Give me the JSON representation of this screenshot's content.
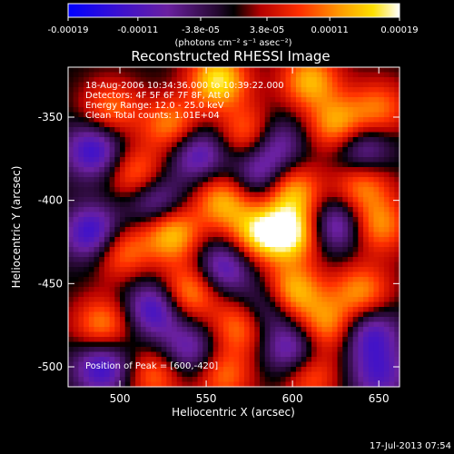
{
  "colorbar": {
    "tick_labels": [
      "-0.00019",
      "-0.00011",
      "-3.8e-05",
      "3.8e-05",
      "0.00011",
      "0.00019"
    ],
    "tick_values": [
      -0.00019,
      -0.00011,
      -3.8e-05,
      3.8e-05,
      0.00011,
      0.00019
    ],
    "range": [
      -0.00019,
      0.00019
    ],
    "unit_label": "(photons cm⁻² s⁻¹ asec⁻²)"
  },
  "footer": {
    "timestamp": "17-Jul-2013 07:54"
  },
  "chart_data": {
    "type": "heatmap",
    "title": "Reconstructed RHESSI Image",
    "xlabel": "Heliocentric X (arcsec)",
    "ylabel": "Heliocentric Y (arcsec)",
    "xlim": [
      470,
      662
    ],
    "ylim": [
      -512,
      -320
    ],
    "x_ticks": [
      500,
      550,
      600,
      650
    ],
    "y_ticks": [
      -350,
      -400,
      -450,
      -500
    ],
    "colormap": "rhessi (blue-purple-black-red-orange-yellow-white)",
    "annotations": [
      "18-Aug-2006 10:34:36.000 to 10:39:22.000",
      "Detectors: 4F 5F 6F 7F 8F, Att 0",
      "Energy Range: 12.0 - 25.0 keV",
      "Clean    Total counts: 1.01E+04"
    ],
    "peak_label": "Position of Peak = [600,-420]",
    "peak": [
      600,
      -420
    ],
    "blobs": [
      {
        "x": 557,
        "y": -328,
        "v": 1.0
      },
      {
        "x": 610,
        "y": -328,
        "v": 0.8
      },
      {
        "x": 495,
        "y": -345,
        "v": 0.6
      },
      {
        "x": 530,
        "y": -355,
        "v": 0.7
      },
      {
        "x": 575,
        "y": -360,
        "v": 0.7
      },
      {
        "x": 626,
        "y": -355,
        "v": 0.8
      },
      {
        "x": 650,
        "y": -345,
        "v": 0.6
      },
      {
        "x": 510,
        "y": -385,
        "v": 0.7
      },
      {
        "x": 560,
        "y": -400,
        "v": 0.8
      },
      {
        "x": 600,
        "y": -395,
        "v": 0.8
      },
      {
        "x": 640,
        "y": -390,
        "v": 0.7
      },
      {
        "x": 530,
        "y": -420,
        "v": 0.9
      },
      {
        "x": 580,
        "y": -420,
        "v": 0.9
      },
      {
        "x": 600,
        "y": -420,
        "v": 1.0
      },
      {
        "x": 650,
        "y": -415,
        "v": 0.7
      },
      {
        "x": 500,
        "y": -430,
        "v": 0.7
      },
      {
        "x": 540,
        "y": -455,
        "v": 0.8
      },
      {
        "x": 600,
        "y": -455,
        "v": 0.9
      },
      {
        "x": 640,
        "y": -455,
        "v": 0.7
      },
      {
        "x": 490,
        "y": -475,
        "v": 0.7
      },
      {
        "x": 570,
        "y": -475,
        "v": 0.7
      },
      {
        "x": 620,
        "y": -475,
        "v": 0.7
      },
      {
        "x": 520,
        "y": -505,
        "v": 0.6
      },
      {
        "x": 560,
        "y": -505,
        "v": 0.6
      },
      {
        "x": 610,
        "y": -505,
        "v": 0.6
      },
      {
        "x": 485,
        "y": -370,
        "v": -0.8
      },
      {
        "x": 545,
        "y": -372,
        "v": -0.7
      },
      {
        "x": 590,
        "y": -365,
        "v": -0.6
      },
      {
        "x": 640,
        "y": -370,
        "v": -0.7
      },
      {
        "x": 520,
        "y": -400,
        "v": -0.7
      },
      {
        "x": 580,
        "y": -385,
        "v": -0.6
      },
      {
        "x": 625,
        "y": -415,
        "v": -0.7
      },
      {
        "x": 485,
        "y": -420,
        "v": -0.9
      },
      {
        "x": 560,
        "y": -440,
        "v": -0.7
      },
      {
        "x": 520,
        "y": -465,
        "v": -0.8
      },
      {
        "x": 585,
        "y": -465,
        "v": -0.6
      },
      {
        "x": 645,
        "y": -480,
        "v": -0.7
      },
      {
        "x": 490,
        "y": -500,
        "v": -0.8
      },
      {
        "x": 540,
        "y": -490,
        "v": -0.6
      },
      {
        "x": 600,
        "y": -490,
        "v": -0.7
      },
      {
        "x": 650,
        "y": -505,
        "v": -0.6
      }
    ]
  }
}
